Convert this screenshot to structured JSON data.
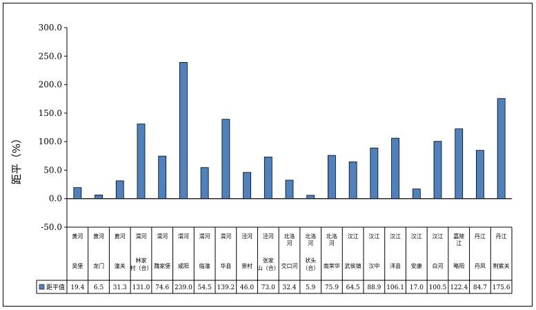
{
  "chart_data": {
    "type": "bar",
    "ylabel": "距平（%）",
    "ylim": [
      -50,
      300
    ],
    "yticks": [
      "300.0",
      "250.0",
      "200.0",
      "150.0",
      "100.0",
      "50.0",
      "0.0",
      "-50.0"
    ],
    "ytick_values": [
      300,
      250,
      200,
      150,
      100,
      50,
      0,
      -50
    ],
    "categories": [
      {
        "river": "黄河",
        "station": "吴堡"
      },
      {
        "river": "黄河",
        "station": "龙门"
      },
      {
        "river": "黄河",
        "station": "潼关"
      },
      {
        "river": "渭河",
        "station": "林家村（合）"
      },
      {
        "river": "渭河",
        "station": "魏家堡"
      },
      {
        "river": "渭河",
        "station": "咸阳"
      },
      {
        "river": "渭河",
        "station": "临潼"
      },
      {
        "river": "渭河",
        "station": "华县"
      },
      {
        "river": "泾河",
        "station": "景村"
      },
      {
        "river": "泾河",
        "station": "张家山（合）"
      },
      {
        "river": "北洛河",
        "station": "交口河"
      },
      {
        "river": "北洛河",
        "station": "状头（合）"
      },
      {
        "river": "北洛河",
        "station": "南荣华"
      },
      {
        "river": "汉江",
        "station": "武侯镇"
      },
      {
        "river": "汉江",
        "station": "汉中"
      },
      {
        "river": "汉江",
        "station": "洋县"
      },
      {
        "river": "汉江",
        "station": "安康"
      },
      {
        "river": "汉江",
        "station": "白河"
      },
      {
        "river": "嘉陵江",
        "station": "略阳"
      },
      {
        "river": "丹江",
        "station": "丹凤"
      },
      {
        "river": "丹江",
        "station": "荆紫关"
      }
    ],
    "series": [
      {
        "name": "距平值",
        "values": [
          19.4,
          6.5,
          31.3,
          131.0,
          74.6,
          239.0,
          54.5,
          139.2,
          46.0,
          73.0,
          32.4,
          5.9,
          75.9,
          64.5,
          88.9,
          106.1,
          17.0,
          100.5,
          122.4,
          84.7,
          175.6
        ],
        "value_labels": [
          "19.4",
          "6.5",
          "31.3",
          "131.0",
          "74.6",
          "239.0",
          "54.5",
          "139.2",
          "46.0",
          "73.0",
          "32.4",
          "5.9",
          "75.9",
          "64.5",
          "88.9",
          "106.1",
          "17.0",
          "100.5",
          "122.4",
          "84.7",
          "175.6"
        ],
        "color": "#4f81bd"
      }
    ],
    "legend": "table-left",
    "grid": false
  }
}
